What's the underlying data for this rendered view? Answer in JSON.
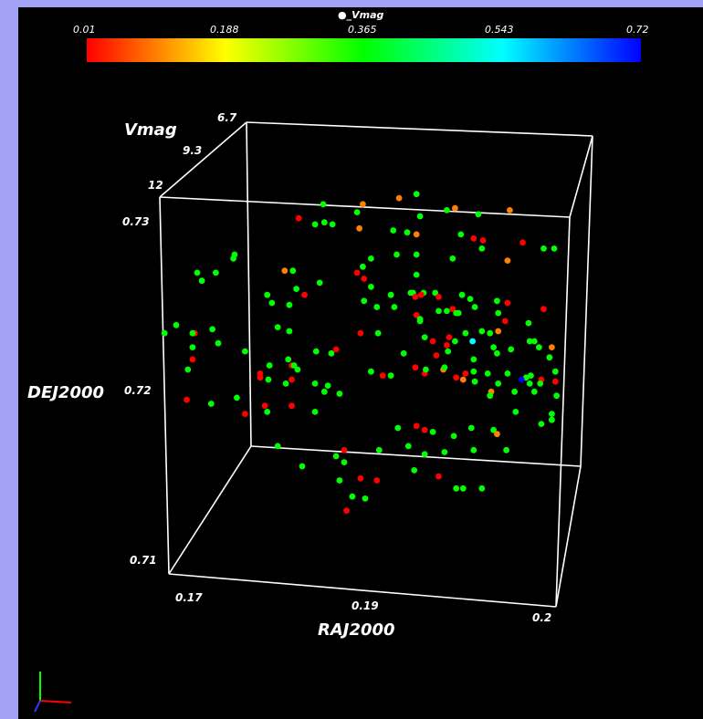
{
  "colors": {
    "window_border": "#a3a3f6",
    "background": "#000000",
    "box_lines": "#ffffff",
    "colorbar_stops": [
      "#ff0000",
      "#ffff00",
      "#00ff00",
      "#00ffff",
      "#0000ff"
    ]
  },
  "colorbar": {
    "title": "●_Vmag",
    "ticks": [
      "0.01",
      "0.188",
      "0.365",
      "0.543",
      "0.72"
    ]
  },
  "axes": {
    "x_title": "RAJ2000",
    "y_title": "DEJ2000",
    "z_title": "Vmag",
    "x_ticks": [
      "0.17",
      "0.19",
      "0.2"
    ],
    "y_ticks": [
      "0.73",
      "0.72",
      "0.71"
    ],
    "z_ticks": [
      "6.7",
      "9.3",
      "12"
    ]
  },
  "orientation_widget": "xyz-axes-triad",
  "chart_data": {
    "type": "scatter",
    "title": "",
    "xlabel": "RAJ2000",
    "ylabel": "DEJ2000",
    "zlabel": "Vmag",
    "color_by": "_Vmag",
    "color_range": [
      0.01,
      0.72
    ],
    "xlim": [
      0.165,
      0.201
    ],
    "ylim": [
      0.7095,
      0.7305
    ],
    "grid": false,
    "legend": "colorbar-top",
    "points": [
      [
        0.1874,
        0.7292,
        "#00ff00"
      ],
      [
        0.1859,
        0.729,
        "#ff8000"
      ],
      [
        0.1954,
        0.7284,
        "#ff8000"
      ],
      [
        0.1794,
        0.7287,
        "#00ff00"
      ],
      [
        0.1907,
        0.7285,
        "#ff8000"
      ],
      [
        0.19,
        0.7284,
        "#00ff00"
      ],
      [
        0.1828,
        0.7287,
        "#ff8000"
      ],
      [
        0.1823,
        0.7283,
        "#00ff00"
      ],
      [
        0.1877,
        0.7281,
        "#00ff00"
      ],
      [
        0.1927,
        0.7282,
        "#00ff00"
      ],
      [
        0.1787,
        0.7277,
        "#00ff00"
      ],
      [
        0.1795,
        0.7278,
        "#00ff00"
      ],
      [
        0.1773,
        0.728,
        "#ff0000"
      ],
      [
        0.1802,
        0.7277,
        "#00ff00"
      ],
      [
        0.1825,
        0.7275,
        "#ff8000"
      ],
      [
        0.1854,
        0.7274,
        "#00ff00"
      ],
      [
        0.1866,
        0.7273,
        "#00ff00"
      ],
      [
        0.1874,
        0.7272,
        "#ff8000"
      ],
      [
        0.1912,
        0.7272,
        "#00ff00"
      ],
      [
        0.1923,
        0.727,
        "#ff0000"
      ],
      [
        0.1931,
        0.7269,
        "#ff0000"
      ],
      [
        0.193,
        0.7265,
        "#00ff00"
      ],
      [
        0.1965,
        0.7268,
        "#ff0000"
      ],
      [
        0.1983,
        0.7265,
        "#00ff00"
      ],
      [
        0.1992,
        0.7265,
        "#00ff00"
      ],
      [
        0.1874,
        0.7262,
        "#00ff00"
      ],
      [
        0.1835,
        0.726,
        "#00ff00"
      ],
      [
        0.1857,
        0.7262,
        "#00ff00"
      ],
      [
        0.1905,
        0.726,
        "#00ff00"
      ],
      [
        0.1952,
        0.7259,
        "#ff8000"
      ],
      [
        0.1874,
        0.7252,
        "#00ff00"
      ],
      [
        0.1717,
        0.726,
        "#00ff00"
      ],
      [
        0.1718,
        0.7262,
        "#00ff00"
      ],
      [
        0.1828,
        0.7256,
        "#00ff00"
      ],
      [
        0.1761,
        0.7254,
        "#ff8000"
      ],
      [
        0.1823,
        0.7253,
        "#ff0000"
      ],
      [
        0.1768,
        0.7254,
        "#00ff00"
      ],
      [
        0.1686,
        0.7253,
        "#00ff00"
      ],
      [
        0.1702,
        0.7253,
        "#00ff00"
      ],
      [
        0.169,
        0.7249,
        "#00ff00"
      ],
      [
        0.1771,
        0.7245,
        "#00ff00"
      ],
      [
        0.1835,
        0.7246,
        "#00ff00"
      ],
      [
        0.1791,
        0.7248,
        "#00ff00"
      ],
      [
        0.1778,
        0.7242,
        "#ff0000"
      ],
      [
        0.1829,
        0.7239,
        "#00ff00"
      ],
      [
        0.1829,
        0.725,
        "#ff0000"
      ],
      [
        0.1852,
        0.7242,
        "#00ff00"
      ],
      [
        0.1869,
        0.7243,
        "#00ff00"
      ],
      [
        0.188,
        0.7243,
        "#00ff00"
      ],
      [
        0.189,
        0.7243,
        "#00ff00"
      ],
      [
        0.1871,
        0.7243,
        "#00ff00"
      ],
      [
        0.1873,
        0.7241,
        "#ff0000"
      ],
      [
        0.1878,
        0.7242,
        "#ff0000"
      ],
      [
        0.1893,
        0.7241,
        "#ff0000"
      ],
      [
        0.1913,
        0.7242,
        "#00ff00"
      ],
      [
        0.192,
        0.724,
        "#00ff00"
      ],
      [
        0.1943,
        0.7239,
        "#00ff00"
      ],
      [
        0.1924,
        0.7236,
        "#00ff00"
      ],
      [
        0.1952,
        0.7238,
        "#ff0000"
      ],
      [
        0.1983,
        0.7235,
        "#ff0000"
      ],
      [
        0.1746,
        0.7242,
        "#00ff00"
      ],
      [
        0.175,
        0.7238,
        "#00ff00"
      ],
      [
        0.1765,
        0.7237,
        "#00ff00"
      ],
      [
        0.184,
        0.7236,
        "#00ff00"
      ],
      [
        0.1855,
        0.7236,
        "#00ff00"
      ],
      [
        0.1874,
        0.7232,
        "#ff0000"
      ],
      [
        0.1893,
        0.7234,
        "#00ff00"
      ],
      [
        0.19,
        0.7234,
        "#00ff00"
      ],
      [
        0.1905,
        0.7235,
        "#ff0000"
      ],
      [
        0.1944,
        0.7233,
        "#00ff00"
      ],
      [
        0.1908,
        0.7233,
        "#00ff00"
      ],
      [
        0.191,
        0.7233,
        "#00ff00"
      ],
      [
        0.1877,
        0.723,
        "#00ff00"
      ],
      [
        0.1877,
        0.7229,
        "#00ff00"
      ],
      [
        0.195,
        0.7229,
        "#ff0000"
      ],
      [
        0.197,
        0.7228,
        "#00ff00"
      ],
      [
        0.1658,
        0.7223,
        "#00ff00"
      ],
      [
        0.1684,
        0.7223,
        "#ff0000"
      ],
      [
        0.1682,
        0.7223,
        "#00ff00"
      ],
      [
        0.1668,
        0.7227,
        "#00ff00"
      ],
      [
        0.1699,
        0.7225,
        "#00ff00"
      ],
      [
        0.1755,
        0.7226,
        "#00ff00"
      ],
      [
        0.1765,
        0.7224,
        "#00ff00"
      ],
      [
        0.1826,
        0.7223,
        "#ff0000"
      ],
      [
        0.1841,
        0.7223,
        "#00ff00"
      ],
      [
        0.1916,
        0.7223,
        "#00ff00"
      ],
      [
        0.193,
        0.7224,
        "#00ff00"
      ],
      [
        0.1937,
        0.7223,
        "#00ff00"
      ],
      [
        0.1944,
        0.7224,
        "#ff8000"
      ],
      [
        0.1881,
        0.7221,
        "#00ff00"
      ],
      [
        0.1907,
        0.7219,
        "#00ff00"
      ],
      [
        0.1902,
        0.7221,
        "#ff0000"
      ],
      [
        0.19,
        0.7217,
        "#ff0000"
      ],
      [
        0.1922,
        0.7219,
        "#00ffff"
      ],
      [
        0.1888,
        0.7219,
        "#ff0000"
      ],
      [
        0.1975,
        0.7219,
        "#00ff00"
      ],
      [
        0.1971,
        0.7219,
        "#00ff00"
      ],
      [
        0.1979,
        0.7216,
        "#00ff00"
      ],
      [
        0.199,
        0.7216,
        "#ff8000"
      ],
      [
        0.1682,
        0.7216,
        "#00ff00"
      ],
      [
        0.1704,
        0.7218,
        "#00ff00"
      ],
      [
        0.1727,
        0.7214,
        "#00ff00"
      ],
      [
        0.1788,
        0.7214,
        "#00ff00"
      ],
      [
        0.1801,
        0.7213,
        "#00ff00"
      ],
      [
        0.1805,
        0.7215,
        "#ff0000"
      ],
      [
        0.1863,
        0.7213,
        "#00ff00"
      ],
      [
        0.1891,
        0.7212,
        "#ff0000"
      ],
      [
        0.1901,
        0.7214,
        "#00ff00"
      ],
      [
        0.1923,
        0.721,
        "#00ff00"
      ],
      [
        0.1943,
        0.7213,
        "#00ff00"
      ],
      [
        0.194,
        0.7216,
        "#00ff00"
      ],
      [
        0.1955,
        0.7215,
        "#00ff00"
      ],
      [
        0.1988,
        0.7211,
        "#00ff00"
      ],
      [
        0.1682,
        0.721,
        "#ff0000"
      ],
      [
        0.1678,
        0.7205,
        "#00ff00"
      ],
      [
        0.174,
        0.7203,
        "#ff0000"
      ],
      [
        0.1748,
        0.7207,
        "#00ff00"
      ],
      [
        0.1764,
        0.721,
        "#00ff00"
      ],
      [
        0.1767,
        0.7207,
        "#ff0000"
      ],
      [
        0.1769,
        0.7207,
        "#00ff00"
      ],
      [
        0.1772,
        0.7205,
        "#00ff00"
      ],
      [
        0.1835,
        0.7204,
        "#00ff00"
      ],
      [
        0.1845,
        0.7202,
        "#ff0000"
      ],
      [
        0.1852,
        0.7202,
        "#00ff00"
      ],
      [
        0.1873,
        0.7206,
        "#ff0000"
      ],
      [
        0.1881,
        0.7203,
        "#ff0000"
      ],
      [
        0.1882,
        0.7205,
        "#00ff00"
      ],
      [
        0.1897,
        0.7205,
        "#ff8000"
      ],
      [
        0.1898,
        0.7206,
        "#00ff00"
      ],
      [
        0.1916,
        0.7203,
        "#ff0000"
      ],
      [
        0.1923,
        0.7204,
        "#00ff00"
      ],
      [
        0.1935,
        0.7203,
        "#00ff00"
      ],
      [
        0.1952,
        0.7203,
        "#00ff00"
      ],
      [
        0.1968,
        0.7201,
        "#00ff00"
      ],
      [
        0.1981,
        0.72,
        "#ff0000"
      ],
      [
        0.1972,
        0.7202,
        "#00ff00"
      ],
      [
        0.1993,
        0.7204,
        "#00ff00"
      ],
      [
        0.174,
        0.7201,
        "#ff0000"
      ],
      [
        0.1747,
        0.72,
        "#00ff00"
      ],
      [
        0.1767,
        0.72,
        "#ff0000"
      ],
      [
        0.1787,
        0.7198,
        "#00ff00"
      ],
      [
        0.1798,
        0.7197,
        "#00ff00"
      ],
      [
        0.1908,
        0.7201,
        "#ff0000"
      ],
      [
        0.1914,
        0.72,
        "#ff8000"
      ],
      [
        0.1924,
        0.7199,
        "#00ff00"
      ],
      [
        0.1944,
        0.7198,
        "#00ff00"
      ],
      [
        0.1964,
        0.72,
        "#0000ff"
      ],
      [
        0.1971,
        0.7198,
        "#00ff00"
      ],
      [
        0.198,
        0.7198,
        "#00ff00"
      ],
      [
        0.1993,
        0.7199,
        "#ff0000"
      ],
      [
        0.1762,
        0.7198,
        "#00ff00"
      ],
      [
        0.1795,
        0.7194,
        "#00ff00"
      ],
      [
        0.1808,
        0.7193,
        "#00ff00"
      ],
      [
        0.1938,
        0.7194,
        "#ff8000"
      ],
      [
        0.1937,
        0.7192,
        "#00ff00"
      ],
      [
        0.1958,
        0.7194,
        "#00ff00"
      ],
      [
        0.1975,
        0.7194,
        "#00ff00"
      ],
      [
        0.1994,
        0.7192,
        "#00ff00"
      ],
      [
        0.1677,
        0.719,
        "#ff0000"
      ],
      [
        0.1698,
        0.7188,
        "#00ff00"
      ],
      [
        0.172,
        0.7191,
        "#00ff00"
      ],
      [
        0.1767,
        0.7187,
        "#ff0000"
      ],
      [
        0.1787,
        0.7184,
        "#00ff00"
      ],
      [
        0.1746,
        0.7184,
        "#00ff00"
      ],
      [
        0.1727,
        0.7183,
        "#ff0000"
      ],
      [
        0.1744,
        0.7187,
        "#ff0000"
      ],
      [
        0.1959,
        0.7184,
        "#00ff00"
      ],
      [
        0.199,
        0.7183,
        "#00ff00"
      ],
      [
        0.1858,
        0.7176,
        "#00ff00"
      ],
      [
        0.1874,
        0.7177,
        "#ff0000"
      ],
      [
        0.1881,
        0.7175,
        "#ff0000"
      ],
      [
        0.1888,
        0.7174,
        "#00ff00"
      ],
      [
        0.1906,
        0.7172,
        "#00ff00"
      ],
      [
        0.1921,
        0.7176,
        "#00ff00"
      ],
      [
        0.194,
        0.7175,
        "#00ff00"
      ],
      [
        0.1943,
        0.7173,
        "#ff8000"
      ],
      [
        0.1981,
        0.7178,
        "#00ff00"
      ],
      [
        0.199,
        0.718,
        "#00ff00"
      ],
      [
        0.1755,
        0.7167,
        "#00ff00"
      ],
      [
        0.1812,
        0.7165,
        "#ff0000"
      ],
      [
        0.1842,
        0.7165,
        "#00ff00"
      ],
      [
        0.1867,
        0.7167,
        "#00ff00"
      ],
      [
        0.1881,
        0.7163,
        "#00ff00"
      ],
      [
        0.1898,
        0.7164,
        "#00ff00"
      ],
      [
        0.1923,
        0.7165,
        "#00ff00"
      ],
      [
        0.1951,
        0.7165,
        "#00ff00"
      ],
      [
        0.1776,
        0.7157,
        "#00ff00"
      ],
      [
        0.1812,
        0.7159,
        "#00ff00"
      ],
      [
        0.1805,
        0.7162,
        "#00ff00"
      ],
      [
        0.1826,
        0.7151,
        "#ff0000"
      ],
      [
        0.184,
        0.715,
        "#ff0000"
      ],
      [
        0.1872,
        0.7155,
        "#00ff00"
      ],
      [
        0.1893,
        0.7152,
        "#ff0000"
      ],
      [
        0.1908,
        0.7146,
        "#00ff00"
      ],
      [
        0.1914,
        0.7146,
        "#00ff00"
      ],
      [
        0.193,
        0.7146,
        "#00ff00"
      ],
      [
        0.1808,
        0.715,
        "#00ff00"
      ],
      [
        0.1819,
        0.7142,
        "#00ff00"
      ],
      [
        0.183,
        0.7141,
        "#00ff00"
      ],
      [
        0.1814,
        0.7135,
        "#ff0000"
      ]
    ]
  }
}
